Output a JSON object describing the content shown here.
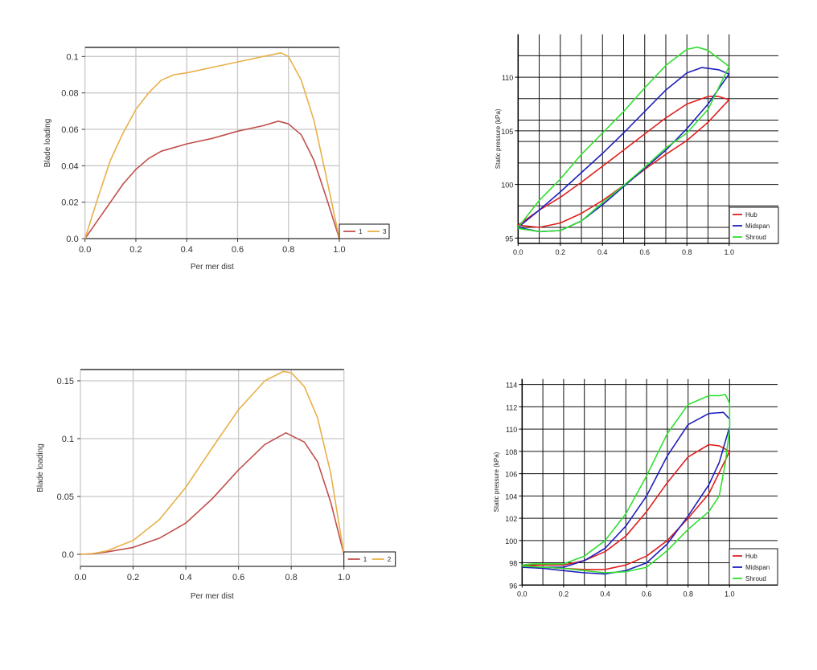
{
  "chart_data": [
    {
      "type": "line",
      "xlabel": "Per mer dist",
      "ylabel": "Blade loading",
      "xlim": [
        0,
        1
      ],
      "ylim": [
        0,
        0.105
      ],
      "grid": true,
      "legend": "bottom-right",
      "xticks": [
        0,
        0.2,
        0.4,
        0.6,
        0.8,
        1.0
      ],
      "xtick_labels": [
        "0.0",
        "0.2",
        "0.4",
        "0.6",
        "0.8",
        "1.0"
      ],
      "yticks": [
        0,
        0.02,
        0.04,
        0.06,
        0.08,
        0.1
      ],
      "ytick_labels": [
        "0.0",
        "0.02",
        "0.04",
        "0.06",
        "0.08",
        "0.1"
      ],
      "series": [
        {
          "name": "1",
          "color": "#c0504d",
          "x": [
            0,
            0.05,
            0.1,
            0.15,
            0.2,
            0.25,
            0.3,
            0.35,
            0.4,
            0.5,
            0.6,
            0.7,
            0.76,
            0.8,
            0.85,
            0.9,
            0.95,
            1.0
          ],
          "y": [
            0,
            0.01,
            0.02,
            0.03,
            0.038,
            0.044,
            0.048,
            0.05,
            0.052,
            0.055,
            0.059,
            0.062,
            0.0645,
            0.063,
            0.057,
            0.043,
            0.022,
            0
          ]
        },
        {
          "name": "3",
          "color": "#e8b04a",
          "x": [
            0,
            0.05,
            0.1,
            0.15,
            0.2,
            0.25,
            0.3,
            0.35,
            0.4,
            0.5,
            0.6,
            0.7,
            0.77,
            0.8,
            0.85,
            0.9,
            0.95,
            1.0
          ],
          "y": [
            0,
            0.022,
            0.043,
            0.058,
            0.071,
            0.08,
            0.087,
            0.09,
            0.091,
            0.094,
            0.097,
            0.1,
            0.102,
            0.1,
            0.087,
            0.065,
            0.033,
            0
          ]
        }
      ]
    },
    {
      "type": "line",
      "xlabel": "",
      "ylabel": "Static pressure (kPa)",
      "xlim": [
        0,
        1
      ],
      "ylim": [
        94.5,
        114
      ],
      "grid": true,
      "legend": "bottom-right",
      "xticks": [
        0,
        0.2,
        0.4,
        0.6,
        0.8,
        1.0
      ],
      "xtick_labels": [
        "0.0",
        "0.2",
        "0.4",
        "0.6",
        "0.8",
        "1.0"
      ],
      "yticks": [
        95,
        100,
        105,
        110
      ],
      "ytick_labels": [
        "95",
        "100",
        "105",
        "110"
      ],
      "series": [
        {
          "name": "Hub",
          "color": "#e02020",
          "x": [
            0,
            0.1,
            0.2,
            0.3,
            0.4,
            0.5,
            0.6,
            0.7,
            0.8,
            0.9,
            0.95,
            1.0,
            0.9,
            0.8,
            0.7,
            0.6,
            0.5,
            0.4,
            0.3,
            0.2,
            0.1,
            0
          ],
          "y": [
            96.2,
            97.6,
            98.8,
            100.2,
            101.7,
            103.2,
            104.7,
            106.2,
            107.5,
            108.2,
            108.2,
            107.9,
            105.8,
            104.1,
            102.8,
            101.4,
            99.9,
            98.5,
            97.3,
            96.4,
            96.0,
            96.2
          ]
        },
        {
          "name": "Midspan",
          "color": "#2020c0",
          "x": [
            0,
            0.1,
            0.2,
            0.3,
            0.4,
            0.5,
            0.6,
            0.7,
            0.8,
            0.87,
            0.95,
            1.0,
            0.9,
            0.8,
            0.7,
            0.6,
            0.5,
            0.4,
            0.3,
            0.2,
            0.1,
            0
          ],
          "y": [
            96.0,
            97.6,
            99.3,
            101.1,
            102.9,
            104.8,
            106.8,
            108.8,
            110.4,
            110.9,
            110.7,
            110.3,
            107.5,
            105.2,
            103.2,
            101.5,
            99.8,
            98.1,
            96.6,
            95.7,
            95.6,
            96.0
          ]
        },
        {
          "name": "Shroud",
          "color": "#30e030",
          "x": [
            0,
            0.1,
            0.2,
            0.3,
            0.4,
            0.5,
            0.6,
            0.7,
            0.8,
            0.85,
            0.9,
            1.0,
            0.9,
            0.8,
            0.7,
            0.6,
            0.5,
            0.4,
            0.3,
            0.2,
            0.1,
            0
          ],
          "y": [
            96.0,
            98.5,
            100.5,
            102.8,
            104.8,
            106.8,
            109.0,
            111.1,
            112.6,
            112.8,
            112.5,
            111.0,
            107.0,
            104.8,
            103.4,
            101.6,
            99.9,
            98.3,
            96.6,
            95.7,
            95.6,
            95.9
          ]
        }
      ]
    },
    {
      "type": "line",
      "xlabel": "Per mer dist",
      "ylabel": "Blade loading",
      "xlim": [
        0,
        1
      ],
      "ylim": [
        -0.0104,
        0.1597
      ],
      "grid": true,
      "legend": "bottom-right",
      "xticks": [
        0,
        0.2,
        0.4,
        0.6,
        0.8,
        1.0
      ],
      "xtick_labels": [
        "0.0",
        "0.2",
        "0.4",
        "0.6",
        "0.8",
        "1.0"
      ],
      "yticks": [
        0,
        0.05,
        0.1,
        0.15
      ],
      "ytick_labels": [
        "0.0",
        "0.05",
        "0.1",
        "0.15"
      ],
      "series": [
        {
          "name": "1",
          "color": "#c0504d",
          "x": [
            0,
            0.05,
            0.1,
            0.2,
            0.3,
            0.4,
            0.5,
            0.6,
            0.7,
            0.78,
            0.85,
            0.9,
            0.95,
            1.0
          ],
          "y": [
            0,
            0.0005,
            0.002,
            0.006,
            0.014,
            0.027,
            0.048,
            0.073,
            0.095,
            0.105,
            0.097,
            0.08,
            0.045,
            0
          ]
        },
        {
          "name": "2",
          "color": "#e8b04a",
          "x": [
            0,
            0.05,
            0.1,
            0.2,
            0.3,
            0.4,
            0.5,
            0.6,
            0.7,
            0.77,
            0.8,
            0.85,
            0.9,
            0.95,
            1.0
          ],
          "y": [
            0,
            0.0008,
            0.003,
            0.012,
            0.03,
            0.058,
            0.092,
            0.125,
            0.15,
            0.158,
            0.157,
            0.145,
            0.118,
            0.07,
            0
          ]
        }
      ]
    },
    {
      "type": "line",
      "xlabel": "",
      "ylabel": "Static pressure (kPa)",
      "xlim": [
        0,
        1
      ],
      "ylim": [
        96,
        114.5
      ],
      "grid": true,
      "legend": "bottom-right",
      "xticks": [
        0,
        0.2,
        0.4,
        0.6,
        0.8,
        1.0
      ],
      "xtick_labels": [
        "0.0",
        "0.2",
        "0.4",
        "0.6",
        "0.8",
        "1.0"
      ],
      "yticks": [
        96,
        98,
        100,
        102,
        104,
        106,
        108,
        110,
        112,
        114
      ],
      "ytick_labels": [
        "96",
        "98",
        "100",
        "102",
        "104",
        "106",
        "108",
        "110",
        "112",
        "114"
      ],
      "series": [
        {
          "name": "Hub",
          "color": "#e02020",
          "x": [
            0,
            0.1,
            0.2,
            0.3,
            0.4,
            0.5,
            0.6,
            0.7,
            0.8,
            0.9,
            0.95,
            1.0,
            0.9,
            0.8,
            0.7,
            0.6,
            0.5,
            0.4,
            0.3,
            0.2,
            0.1,
            0
          ],
          "y": [
            97.8,
            97.8,
            97.8,
            98.2,
            99.0,
            100.4,
            102.6,
            105.2,
            107.5,
            108.6,
            108.5,
            108.0,
            104.2,
            102.0,
            100.0,
            98.6,
            97.8,
            97.4,
            97.4,
            97.5,
            97.6,
            97.8
          ]
        },
        {
          "name": "Midspan",
          "color": "#2020c0",
          "x": [
            0,
            0.1,
            0.2,
            0.3,
            0.4,
            0.5,
            0.6,
            0.7,
            0.8,
            0.9,
            0.97,
            1.0,
            1.0,
            0.95,
            0.9,
            0.8,
            0.7,
            0.6,
            0.5,
            0.4,
            0.3,
            0.2,
            0.1,
            0
          ],
          "y": [
            97.6,
            97.6,
            97.6,
            98.2,
            99.3,
            101.3,
            104.0,
            107.6,
            110.4,
            111.4,
            111.5,
            110.9,
            110.2,
            107.0,
            105.0,
            102.2,
            99.7,
            98.0,
            97.3,
            97.0,
            97.1,
            97.3,
            97.5,
            97.6
          ]
        },
        {
          "name": "Shroud",
          "color": "#30e030",
          "x": [
            0,
            0.05,
            0.2,
            0.3,
            0.4,
            0.5,
            0.6,
            0.7,
            0.8,
            0.9,
            0.95,
            0.98,
            1.0,
            1.0,
            0.98,
            0.95,
            0.9,
            0.8,
            0.7,
            0.6,
            0.5,
            0.4,
            0.3,
            0.2,
            0.1,
            0
          ],
          "y": [
            97.8,
            97.9,
            97.9,
            98.6,
            100.0,
            102.4,
            105.8,
            109.6,
            112.2,
            113.0,
            113.0,
            113.1,
            112.3,
            110.0,
            107.0,
            104.0,
            102.6,
            101.0,
            99.1,
            97.6,
            97.2,
            97.1,
            97.3,
            97.5,
            97.6,
            97.7
          ]
        }
      ]
    }
  ]
}
